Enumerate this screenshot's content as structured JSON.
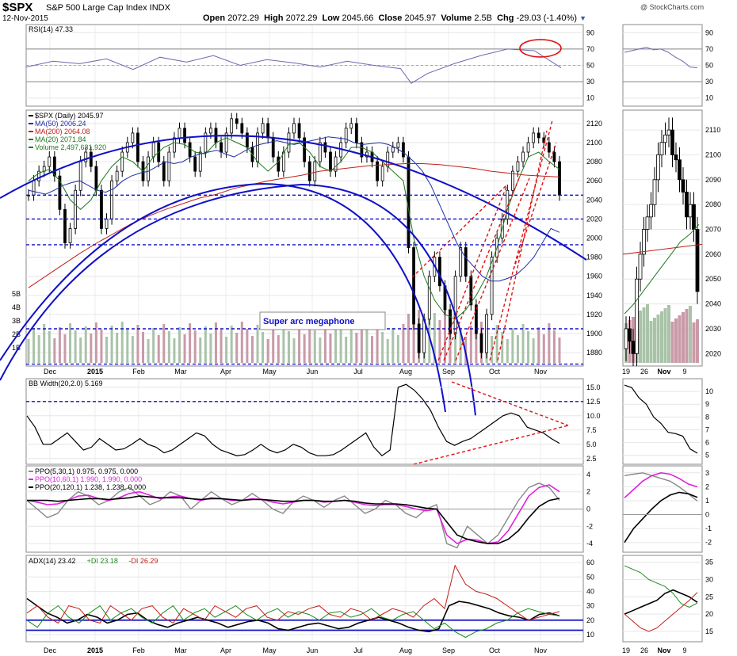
{
  "header": {
    "symbol": "$SPX",
    "name": "S&P 500 Large Cap Index INDX",
    "date": "12-Nov-2015",
    "watermark": "@ StockCharts.com",
    "open_label": "Open",
    "open": "2072.29",
    "high_label": "High",
    "high": "2072.29",
    "low_label": "Low",
    "low": "2045.66",
    "close_label": "Close",
    "close": "2045.97",
    "volume_label": "Volume",
    "volume": "2.5B",
    "chg_label": "Chg",
    "chg": "-29.03 (-1.40%)"
  },
  "colors": {
    "price": "#000000",
    "ma50": "#1f2ea3",
    "ma200": "#c0201a",
    "ma20": "#1e7a1e",
    "volume_up": "#a9c3a9",
    "volume_down": "#c99aa8",
    "annotation_blue": "#1010c8",
    "annotation_red": "#e01010",
    "ppo_fast": "#888888",
    "ppo_mid": "#e020e0",
    "adx_plus": "#1e8a1e",
    "adx_minus": "#c0201a",
    "rsi_line": "#6a6ab0"
  },
  "chart_data": [
    {
      "id": "rsi",
      "type": "line",
      "legend": "RSI(14) 47.33",
      "yticks": [
        90,
        70,
        50,
        30,
        10
      ],
      "ylim": [
        0,
        100
      ],
      "levels": [
        70,
        30
      ],
      "series": [
        {
          "name": "RSI(14)",
          "x": [
            0,
            0.05,
            0.1,
            0.15,
            0.2,
            0.25,
            0.3,
            0.35,
            0.4,
            0.45,
            0.5,
            0.55,
            0.6,
            0.65,
            0.7,
            0.72,
            0.75,
            0.8,
            0.85,
            0.9,
            0.95,
            1
          ],
          "values": [
            48,
            55,
            52,
            58,
            45,
            60,
            54,
            62,
            50,
            57,
            53,
            48,
            55,
            50,
            46,
            28,
            40,
            52,
            62,
            70,
            68,
            47
          ]
        }
      ],
      "annotation": "overbought circle near 70"
    },
    {
      "id": "price",
      "type": "candlestick",
      "legend": [
        "$SPX (Daily) 2045.97",
        "MA(50) 2006.24",
        "MA(200) 2064.08",
        "MA(20) 2071.84",
        "Volume 2,497,631,920"
      ],
      "yticks": [
        2120,
        2100,
        2080,
        2060,
        2040,
        2020,
        2000,
        1980,
        1960,
        1940,
        1920,
        1900,
        1880
      ],
      "ylim": [
        1866,
        2134
      ],
      "volume_ticks": [
        "5B",
        "4B",
        "3B",
        "2B",
        "1B"
      ],
      "xticks": [
        "Dec",
        "2015",
        "Feb",
        "Mar",
        "Apr",
        "May",
        "Jun",
        "Jul",
        "Aug",
        "Sep",
        "Oct",
        "Nov"
      ],
      "close": [
        2045,
        2060,
        2070,
        2075,
        2085,
        2065,
        2030,
        1995,
        2010,
        2050,
        2080,
        2090,
        2075,
        2050,
        2010,
        2020,
        2060,
        2070,
        2090,
        2100,
        2110,
        2080,
        2060,
        2085,
        2100,
        2080,
        2060,
        2090,
        2105,
        2115,
        2100,
        2085,
        2070,
        2090,
        2110,
        2115,
        2100,
        2090,
        2110,
        2125,
        2120,
        2110,
        2095,
        2080,
        2110,
        2120,
        2105,
        2085,
        2070,
        2090,
        2110,
        2120,
        2105,
        2080,
        2060,
        2080,
        2100,
        2090,
        2070,
        2085,
        2100,
        2115,
        2120,
        2100,
        2085,
        2090,
        2080,
        2060,
        2075,
        2090,
        2095,
        2100,
        2085,
        1990,
        1910,
        1880,
        1915,
        1960,
        1980,
        1950,
        1925,
        1900,
        1960,
        1990,
        1960,
        1930,
        1900,
        1880,
        1920,
        1980,
        2000,
        2020,
        2050,
        2070,
        2080,
        2090,
        2100,
        2110,
        2105,
        2100,
        2090,
        2080,
        2045
      ],
      "ma50": [
        2050,
        2048,
        2046,
        2050,
        2055,
        2058,
        2060,
        2055,
        2050,
        2048,
        2052,
        2060,
        2065,
        2068,
        2070,
        2075,
        2080,
        2078,
        2080,
        2085,
        2088,
        2090,
        2092,
        2088,
        2085,
        2090,
        2095,
        2098,
        2100,
        2102,
        2100,
        2098,
        2100,
        2102,
        2104,
        2106,
        2105,
        2104,
        2100,
        2098,
        2099,
        2100,
        2098,
        2094,
        2088,
        2080,
        2070,
        2055,
        2035,
        2015,
        1995,
        1980,
        1970,
        1960,
        1955,
        1955,
        1958,
        1962,
        1970,
        1980,
        1995,
        2010,
        2006
      ],
      "ma200": [
        1948,
        1960,
        1972,
        1984,
        1995,
        2005,
        2015,
        2023,
        2030,
        2036,
        2042,
        2046,
        2052,
        2056,
        2060,
        2063,
        2066,
        2070,
        2072,
        2074,
        2076,
        2077,
        2078,
        2078,
        2077,
        2075,
        2073,
        2070,
        2068,
        2066,
        2065,
        2064
      ],
      "ma20": [
        2060,
        2068,
        2072,
        2060,
        2040,
        2030,
        2040,
        2060,
        2075,
        2085,
        2080,
        2070,
        2085,
        2095,
        2100,
        2098,
        2090,
        2088,
        2100,
        2105,
        2100,
        2095,
        2080,
        2070,
        2080,
        2098,
        2100,
        2090,
        2075,
        2070,
        2080,
        2095,
        2095,
        2090,
        2080,
        2070,
        2060,
        2000,
        1960,
        1935,
        1920,
        1915,
        1925,
        1940,
        1960,
        1990,
        2030,
        2060,
        2085,
        2090,
        2080,
        2072
      ],
      "volume_scale_max": 5,
      "annotations": {
        "label": "Super arc megaphone",
        "support_levels": [
          2045,
          2020,
          1993,
          1905,
          1868
        ]
      }
    },
    {
      "id": "bbwidth",
      "type": "line",
      "legend": "BB Width(20,2.0) 5.169",
      "yticks": [
        15.0,
        12.5,
        10.0,
        7.5,
        5.0,
        2.5
      ],
      "ylim": [
        1.5,
        16.5
      ],
      "levels": [
        12.5
      ],
      "series": [
        {
          "name": "BB Width(20,2.0)",
          "values": [
            10,
            8,
            5,
            5,
            6,
            7,
            5.5,
            4,
            4.5,
            6,
            5,
            4,
            4.2,
            5,
            6,
            5,
            4.5,
            3.5,
            4,
            5,
            6,
            7,
            6.5,
            5,
            4,
            3.5,
            3,
            3.2,
            4,
            5,
            4,
            3.5,
            4,
            5,
            4.5,
            3.5,
            3,
            3,
            3.2,
            4,
            5,
            6,
            7,
            4.5,
            3,
            4,
            15,
            15.5,
            14.5,
            13,
            11,
            8,
            5.5,
            4.8,
            5.5,
            6,
            7,
            8,
            9,
            10,
            10.5,
            10,
            8,
            7.5,
            7,
            6,
            5.17
          ]
        }
      ]
    },
    {
      "id": "ppo",
      "type": "line",
      "legend": [
        "PPO(5,30,1) 0.975, 0.975, 0.000",
        "PPO(10,60,1) 1.990, 1.990, 0.000",
        "PPO(20,120,1) 1.238, 1.238, 0.000"
      ],
      "yticks": [
        4,
        2,
        0,
        -2,
        -4
      ],
      "ylim": [
        -5,
        5
      ],
      "series": [
        {
          "name": "PPO(5,30,1)",
          "values": [
            1,
            0,
            -1,
            -0.5,
            1,
            2,
            1.5,
            0.5,
            1,
            2,
            2.5,
            1.5,
            0.5,
            1,
            2,
            1.5,
            0,
            1,
            2,
            1.2,
            0.5,
            1,
            1.8,
            1,
            0,
            -0.5,
            0.8,
            1.5,
            1,
            0.2,
            1,
            1.5,
            0.5,
            -0.5,
            0,
            1,
            0.5,
            -0.5,
            -1,
            0,
            0.5,
            -4,
            -4.5,
            -2,
            -3,
            -4,
            -3,
            -1,
            1,
            2.5,
            3,
            2.5,
            1
          ]
        },
        {
          "name": "PPO(10,60,1)",
          "values": [
            1,
            0.8,
            0.5,
            0.6,
            1,
            1.5,
            1.6,
            1.2,
            1,
            1.3,
            1.8,
            2,
            1.6,
            1.2,
            1.4,
            1.5,
            1.2,
            1.0,
            1.3,
            1.2,
            1.0,
            1.0,
            1.2,
            1.1,
            0.8,
            0.6,
            0.8,
            1,
            1,
            0.8,
            0.9,
            1,
            0.8,
            0.5,
            0.4,
            0.5,
            0.5,
            0.3,
            0,
            -0.2,
            0,
            -3,
            -4,
            -3.5,
            -3.6,
            -4,
            -3.8,
            -2.5,
            -0.5,
            1.5,
            2.5,
            2.8,
            2
          ]
        },
        {
          "name": "PPO(20,120,1)",
          "values": [
            1,
            1,
            1,
            0.9,
            1,
            1.1,
            1.2,
            1.2,
            1.1,
            1.2,
            1.3,
            1.5,
            1.4,
            1.3,
            1.3,
            1.3,
            1.2,
            1.1,
            1.2,
            1.2,
            1.1,
            1.0,
            1.1,
            1.1,
            1.0,
            0.9,
            0.9,
            1.0,
            1.0,
            0.9,
            0.9,
            1.0,
            0.9,
            0.7,
            0.6,
            0.6,
            0.6,
            0.5,
            0.3,
            0.1,
            0,
            -1.5,
            -3,
            -3.5,
            -3.8,
            -4,
            -4,
            -3.5,
            -2.5,
            -1,
            0.3,
            1,
            1.24
          ]
        }
      ]
    },
    {
      "id": "adx",
      "type": "line",
      "legend": [
        "ADX(14) 23.42",
        "+DI 23.18",
        "-DI 26.29"
      ],
      "yticks": [
        60,
        50,
        40,
        30,
        20,
        10
      ],
      "ylim": [
        5,
        65
      ],
      "levels": [
        20,
        13
      ],
      "series": [
        {
          "name": "ADX(14)",
          "values": [
            35,
            30,
            25,
            22,
            18,
            20,
            24,
            22,
            18,
            20,
            24,
            25,
            20,
            17,
            15,
            18,
            20,
            22,
            20,
            18,
            15,
            17,
            19,
            20,
            18,
            14,
            13,
            15,
            17,
            18,
            16,
            14,
            15,
            18,
            20,
            22,
            20,
            18,
            15,
            13,
            12,
            14,
            30,
            33,
            32,
            30,
            28,
            25,
            23,
            22,
            20,
            24,
            25,
            23
          ]
        },
        {
          "name": "+DI",
          "values": [
            20,
            15,
            25,
            30,
            22,
            18,
            25,
            30,
            20,
            25,
            28,
            22,
            18,
            25,
            30,
            20,
            25,
            28,
            22,
            26,
            30,
            24,
            20,
            25,
            28,
            22,
            26,
            24,
            20,
            25,
            26,
            22,
            24,
            28,
            22,
            20,
            24,
            26,
            20,
            14,
            18,
            12,
            8,
            12,
            14,
            18,
            20,
            25,
            28,
            26,
            24,
            23
          ]
        },
        {
          "name": "-DI",
          "values": [
            25,
            30,
            22,
            18,
            30,
            28,
            20,
            18,
            30,
            25,
            20,
            28,
            30,
            22,
            18,
            28,
            24,
            20,
            30,
            26,
            22,
            28,
            30,
            22,
            20,
            26,
            24,
            28,
            30,
            24,
            22,
            28,
            26,
            20,
            24,
            28,
            26,
            22,
            30,
            35,
            28,
            58,
            45,
            40,
            38,
            35,
            30,
            25,
            20,
            22,
            24,
            26
          ]
        }
      ]
    },
    {
      "id": "rsi_zoom",
      "type": "line",
      "yticks": [
        90,
        70,
        50,
        30,
        10
      ],
      "series": [
        {
          "name": "RSI(14)",
          "values": [
            66,
            68,
            70,
            72,
            69,
            70,
            66,
            60,
            55,
            48,
            47
          ]
        }
      ]
    },
    {
      "id": "price_zoom",
      "type": "candlestick",
      "yticks": [
        2110,
        2100,
        2090,
        2080,
        2070,
        2060,
        2050,
        2040,
        2030,
        2020
      ],
      "ylim": [
        2015,
        2118
      ],
      "xticks": [
        "19",
        "26",
        "Nov",
        "9"
      ],
      "close": [
        2030,
        2025,
        2020,
        2050,
        2060,
        2070,
        2075,
        2080,
        2090,
        2100,
        2105,
        2108,
        2110,
        2100,
        2098,
        2090,
        2085,
        2075,
        2080,
        2070,
        2045
      ],
      "ma20": [
        2036,
        2040,
        2045,
        2050,
        2055,
        2060,
        2065,
        2068,
        2072
      ]
    },
    {
      "id": "bbwidth_zoom",
      "type": "line",
      "yticks": [
        10,
        9,
        8,
        7,
        6,
        5
      ],
      "series": [
        {
          "name": "BB Width(20,2.0)",
          "values": [
            10.5,
            10.3,
            9.5,
            9,
            8,
            7.5,
            6.8,
            6.7,
            6.5,
            5.5,
            5.17
          ]
        }
      ]
    },
    {
      "id": "ppo_zoom",
      "type": "line",
      "yticks": [
        3,
        2,
        1,
        0,
        -1,
        -2
      ],
      "series": [
        {
          "name": "PPO(5,30,1)",
          "values": [
            2.8,
            2.9,
            3,
            2.8,
            2.6,
            2.4,
            2,
            1.5,
            0.97
          ]
        },
        {
          "name": "PPO(10,60,1)",
          "values": [
            1.2,
            1.8,
            2.4,
            2.8,
            3,
            2.9,
            2.6,
            2.2,
            1.99
          ]
        },
        {
          "name": "PPO(20,120,1)",
          "values": [
            -2,
            -1,
            -0.3,
            0.4,
            1,
            1.4,
            1.6,
            1.5,
            1.24
          ]
        }
      ]
    },
    {
      "id": "adx_zoom",
      "type": "line",
      "yticks": [
        35,
        30,
        25,
        20,
        15
      ],
      "series": [
        {
          "name": "ADX(14)",
          "values": [
            20,
            21,
            22,
            23,
            24,
            26,
            27,
            26,
            25,
            23.4
          ]
        },
        {
          "name": "+DI",
          "values": [
            34,
            33,
            32,
            30,
            29,
            28,
            26,
            23,
            22,
            23.2
          ]
        },
        {
          "name": "-DI",
          "values": [
            20,
            18,
            16,
            15,
            16,
            18,
            20,
            22,
            24,
            26.3
          ]
        }
      ]
    }
  ]
}
